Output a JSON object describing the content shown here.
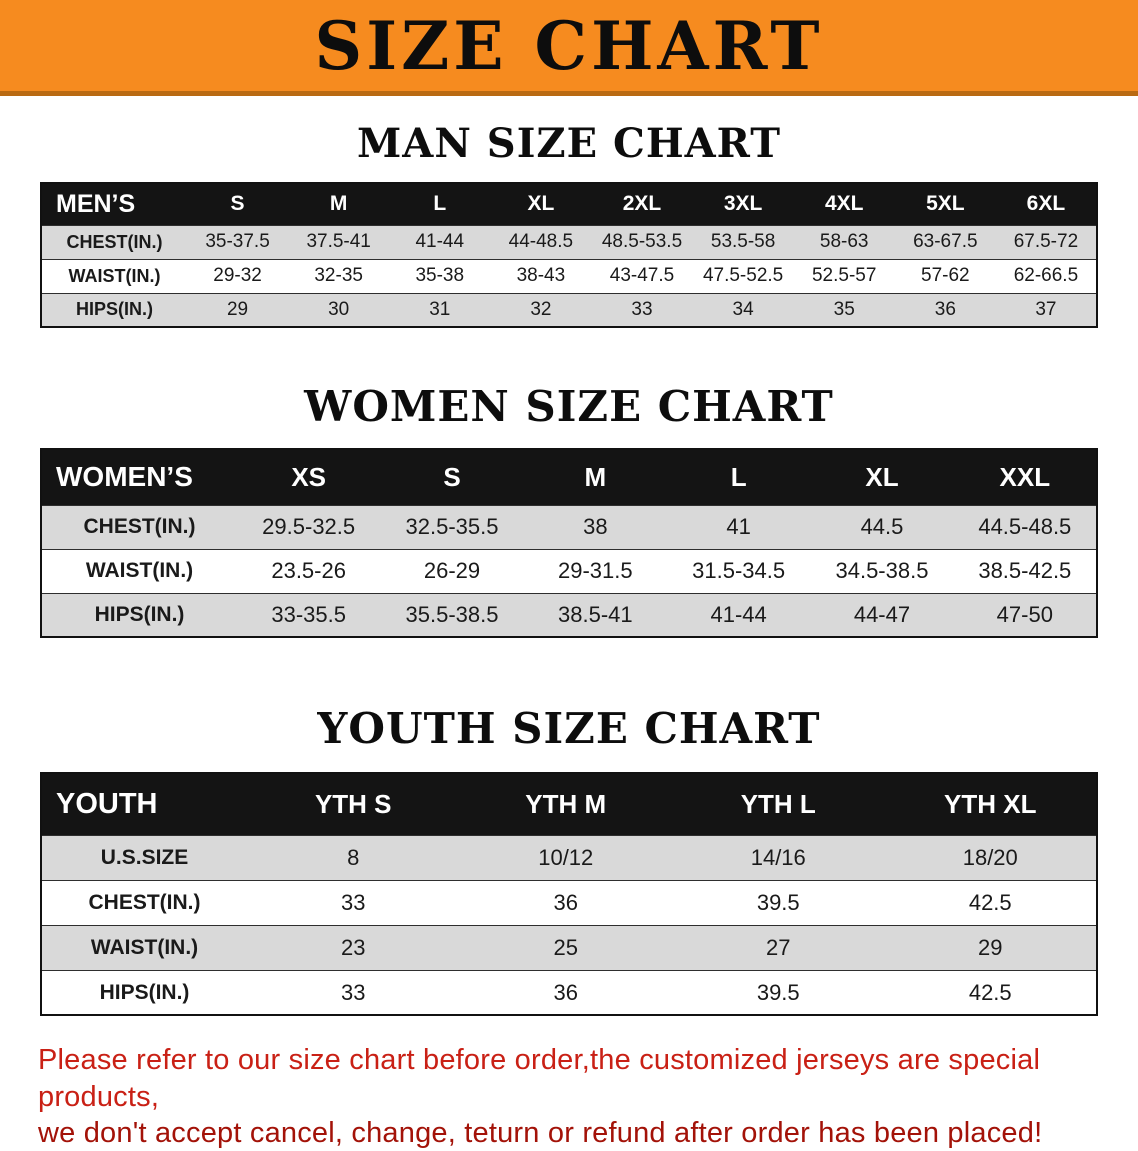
{
  "banner": {
    "title": "SIZE CHART"
  },
  "colors": {
    "banner-bg": "#F68B1F",
    "header-row-bg": "#141414",
    "alt-row-bg": "#D9D9D9",
    "heading-text": "#0d0d0d",
    "disclaimer-red": "#C92015",
    "disclaimer-red-dark": "#A31208"
  },
  "sections": [
    {
      "id": "men",
      "heading": "MAN SIZE CHART",
      "table": {
        "header": [
          "MEN’S",
          "S",
          "M",
          "L",
          "XL",
          "2XL",
          "3XL",
          "4XL",
          "5XL",
          "6XL"
        ],
        "rows": [
          [
            "CHEST(IN.)",
            "35-37.5",
            "37.5-41",
            "41-44",
            "44-48.5",
            "48.5-53.5",
            "53.5-58",
            "58-63",
            "63-67.5",
            "67.5-72"
          ],
          [
            "WAIST(IN.)",
            "29-32",
            "32-35",
            "35-38",
            "38-43",
            "43-47.5",
            "47.5-52.5",
            "52.5-57",
            "57-62",
            "62-66.5"
          ],
          [
            "HIPS(IN.)",
            "29",
            "30",
            "31",
            "32",
            "33",
            "34",
            "35",
            "36",
            "37"
          ]
        ]
      }
    },
    {
      "id": "women",
      "heading": "WOMEN SIZE CHART",
      "table": {
        "header": [
          "WOMEN’S",
          "XS",
          "S",
          "M",
          "L",
          "XL",
          "XXL"
        ],
        "rows": [
          [
            "CHEST(IN.)",
            "29.5-32.5",
            "32.5-35.5",
            "38",
            "41",
            "44.5",
            "44.5-48.5"
          ],
          [
            "WAIST(IN.)",
            "23.5-26",
            "26-29",
            "29-31.5",
            "31.5-34.5",
            "34.5-38.5",
            "38.5-42.5"
          ],
          [
            "HIPS(IN.)",
            "33-35.5",
            "35.5-38.5",
            "38.5-41",
            "41-44",
            "44-47",
            "47-50"
          ]
        ]
      }
    },
    {
      "id": "youth",
      "heading": "YOUTH SIZE CHART",
      "table": {
        "header": [
          "YOUTH",
          "YTH S",
          "YTH M",
          "YTH L",
          "YTH XL"
        ],
        "rows": [
          [
            "U.S.SIZE",
            "8",
            "10/12",
            "14/16",
            "18/20"
          ],
          [
            "CHEST(IN.)",
            "33",
            "36",
            "39.5",
            "42.5"
          ],
          [
            "WAIST(IN.)",
            "23",
            "25",
            "27",
            "29"
          ],
          [
            "HIPS(IN.)",
            "33",
            "36",
            "39.5",
            "42.5"
          ]
        ]
      }
    }
  ],
  "disclaimer": {
    "line1": "Please refer to our size chart before order,the customized jerseys are special products,",
    "line2": "we don't accept cancel, change, teturn or refund after order has been placed!"
  }
}
